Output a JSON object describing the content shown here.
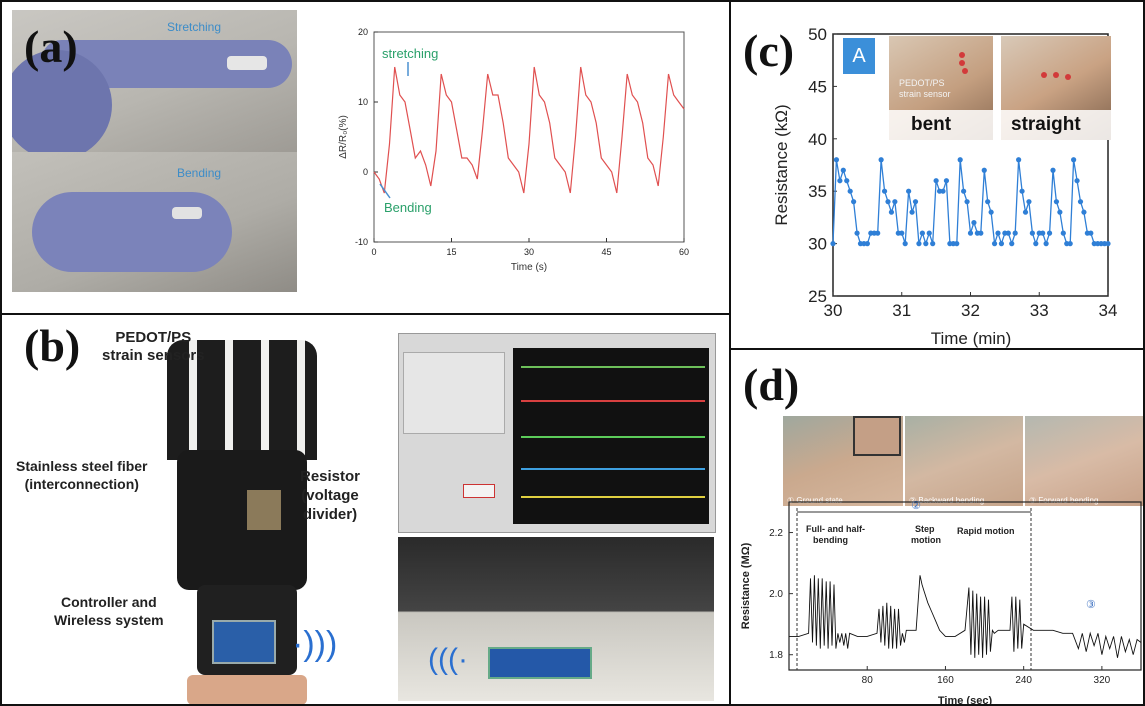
{
  "figure": {
    "panel_a": {
      "label": "(a)",
      "photo_top_text": "Stretching",
      "photo_bottom_text": "Bending",
      "annot_stretch": "stretching",
      "annot_bend": "Bending",
      "ylabel": "ΔR/R₀(%)",
      "xlabel": "Time (s)"
    },
    "panel_b": {
      "label": "(b)",
      "ann_sensors": "PEDOT/PS\nstrain sensors",
      "ann_fiber": "Stainless steel fiber\n(interconnection)",
      "ann_resistor": "Resistor\n(voltage\ndivider)",
      "ann_controller": "Controller and\nWireless system"
    },
    "panel_c": {
      "label": "(c)",
      "badge": "A",
      "bent": "bent",
      "straight": "straight",
      "sensor_text": "PEDOT/PS\nstrain sensor",
      "ylabel": "Resistance (kΩ)",
      "xlabel": "Time (min)"
    },
    "panel_d": {
      "label": "(d)",
      "photo1": "① Ground state",
      "photo2": "② Backward bending",
      "photo3": "③ Forward bending",
      "marker_mid": "②",
      "marker_right": "③",
      "seg1": "Full- and half-\nbending",
      "seg2": "Step\nmotion",
      "seg3": "Rapid motion",
      "ylabel": "Resistance (MΩ)",
      "xlabel": "Time (sec)"
    }
  },
  "chart_data": [
    {
      "id": "a",
      "type": "line",
      "xlabel": "Time (s)",
      "ylabel": "ΔR/R₀(%)",
      "xlim": [
        0,
        60
      ],
      "ylim": [
        -10,
        20
      ],
      "xticks": [
        0,
        15,
        30,
        45,
        60
      ],
      "yticks": [
        -10,
        0,
        10,
        20
      ],
      "color": "#e05050",
      "annotations": [
        "stretching",
        "Bending"
      ],
      "x": [
        0,
        1,
        2,
        3,
        4,
        5,
        6,
        7,
        8,
        9,
        10,
        11,
        12,
        13,
        14,
        15,
        16,
        17,
        18,
        19,
        20,
        21,
        22,
        23,
        24,
        25,
        26,
        27,
        28,
        29,
        30,
        31,
        32,
        33,
        34,
        35,
        36,
        37,
        38,
        39,
        40,
        41,
        42,
        43,
        44,
        45,
        46,
        47,
        48,
        49,
        50,
        51,
        52,
        53,
        54,
        55,
        56,
        57,
        58,
        59,
        60
      ],
      "y": [
        0,
        -1,
        -3,
        4,
        15,
        11,
        10,
        6,
        2,
        3,
        1,
        -2,
        3,
        14,
        11,
        10,
        6,
        2,
        2,
        1,
        -1,
        6,
        14,
        11,
        11,
        7,
        2,
        1,
        0,
        -3,
        4,
        15,
        11,
        10,
        7,
        2,
        1,
        0,
        -3,
        5,
        15,
        11,
        10,
        7,
        2,
        1,
        0,
        -3,
        5,
        14,
        11,
        10,
        7,
        2,
        1,
        -2,
        5,
        14,
        11,
        10,
        9
      ]
    },
    {
      "id": "c",
      "type": "line",
      "xlabel": "Time (min)",
      "ylabel": "Resistance (kΩ)",
      "xlim": [
        30,
        34
      ],
      "ylim": [
        25,
        50
      ],
      "xticks": [
        30,
        31,
        32,
        33,
        34
      ],
      "yticks": [
        25,
        30,
        35,
        40,
        45,
        50
      ],
      "color": "#2f7fd6",
      "x": [
        30.0,
        30.05,
        30.1,
        30.15,
        30.2,
        30.25,
        30.3,
        30.35,
        30.4,
        30.45,
        30.5,
        30.55,
        30.6,
        30.65,
        30.7,
        30.75,
        30.8,
        30.85,
        30.9,
        30.95,
        31.0,
        31.05,
        31.1,
        31.15,
        31.2,
        31.25,
        31.3,
        31.35,
        31.4,
        31.45,
        31.5,
        31.55,
        31.6,
        31.65,
        31.7,
        31.75,
        31.8,
        31.85,
        31.9,
        31.95,
        32.0,
        32.05,
        32.1,
        32.15,
        32.2,
        32.25,
        32.3,
        32.35,
        32.4,
        32.45,
        32.5,
        32.55,
        32.6,
        32.65,
        32.7,
        32.75,
        32.8,
        32.85,
        32.9,
        32.95,
        33.0,
        33.05,
        33.1,
        33.15,
        33.2,
        33.25,
        33.3,
        33.35,
        33.4,
        33.45,
        33.5,
        33.55,
        33.6,
        33.65,
        33.7,
        33.75,
        33.8,
        33.85,
        33.9,
        33.95,
        34.0
      ],
      "y": [
        30,
        38,
        36,
        37,
        36,
        35,
        34,
        31,
        30,
        30,
        30,
        31,
        31,
        31,
        38,
        35,
        34,
        33,
        34,
        31,
        31,
        30,
        35,
        33,
        34,
        30,
        31,
        30,
        31,
        30,
        36,
        35,
        35,
        36,
        30,
        30,
        30,
        38,
        35,
        34,
        31,
        32,
        31,
        31,
        37,
        34,
        33,
        30,
        31,
        30,
        31,
        31,
        30,
        31,
        38,
        35,
        33,
        34,
        31,
        30,
        31,
        31,
        30,
        31,
        37,
        34,
        33,
        31,
        30,
        30,
        38,
        36,
        34,
        33,
        31,
        31,
        30,
        30,
        30,
        30,
        30
      ]
    },
    {
      "id": "d",
      "type": "line",
      "xlabel": "Time (sec)",
      "ylabel": "Resistance (MΩ)",
      "xlim": [
        0,
        360
      ],
      "ylim": [
        1.75,
        2.3
      ],
      "xticks": [
        80,
        160,
        240,
        320
      ],
      "yticks": [
        1.8,
        2.0,
        2.2
      ],
      "color": "#111111",
      "segments": [
        "Full- and half-bending",
        "Step motion",
        "Rapid motion"
      ],
      "x": [
        0,
        10,
        20,
        22,
        24,
        26,
        28,
        30,
        32,
        34,
        36,
        38,
        40,
        42,
        44,
        46,
        48,
        50,
        52,
        54,
        56,
        58,
        60,
        62,
        70,
        80,
        90,
        92,
        94,
        96,
        98,
        100,
        102,
        104,
        106,
        108,
        110,
        112,
        114,
        116,
        118,
        120,
        130,
        134,
        136,
        138,
        142,
        146,
        150,
        154,
        160,
        170,
        180,
        184,
        186,
        188,
        190,
        192,
        194,
        196,
        198,
        200,
        202,
        204,
        206,
        208,
        210,
        214,
        218,
        222,
        226,
        228,
        230,
        232,
        234,
        236,
        238,
        240,
        250,
        260,
        270,
        280,
        290,
        296,
        300,
        304,
        308,
        312,
        316,
        320,
        324,
        328,
        332,
        336,
        340,
        344,
        348,
        352,
        356,
        360
      ],
      "y": [
        1.86,
        1.86,
        1.87,
        2.05,
        1.84,
        2.06,
        1.83,
        2.05,
        1.82,
        2.05,
        1.83,
        2.04,
        1.82,
        2.04,
        1.83,
        2.03,
        1.82,
        1.87,
        1.84,
        1.87,
        1.83,
        1.87,
        1.82,
        1.87,
        1.86,
        1.86,
        1.87,
        1.95,
        1.84,
        1.96,
        1.83,
        1.97,
        1.82,
        1.96,
        1.82,
        1.95,
        1.82,
        1.95,
        1.83,
        1.87,
        1.84,
        1.88,
        1.88,
        2.06,
        2.03,
        2.01,
        1.97,
        1.94,
        1.91,
        1.88,
        1.86,
        1.86,
        1.88,
        2.02,
        1.8,
        2.01,
        1.79,
        2.0,
        1.8,
        1.99,
        1.79,
        1.99,
        1.8,
        1.98,
        1.81,
        1.88,
        1.87,
        1.88,
        1.88,
        1.88,
        1.88,
        1.99,
        1.81,
        1.99,
        1.82,
        1.98,
        1.82,
        1.9,
        1.88,
        1.88,
        1.88,
        1.87,
        1.87,
        1.82,
        1.87,
        1.81,
        1.87,
        1.83,
        1.87,
        1.8,
        1.86,
        1.82,
        1.86,
        1.79,
        1.86,
        1.81,
        1.85,
        1.8,
        1.85,
        1.84
      ]
    }
  ]
}
